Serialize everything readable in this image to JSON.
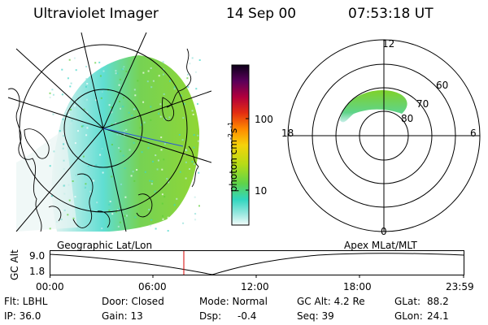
{
  "header": {
    "instrument": "Ultraviolet Imager",
    "date": "14 Sep 00",
    "time": "07:53:18 UT"
  },
  "colorbar": {
    "ticks": [
      "100",
      "10"
    ],
    "unit_label": "photon cm",
    "unit_exp1": "-2",
    "unit_s": "s",
    "unit_exp2": "-1"
  },
  "polar_plot": {
    "mlt_labels": [
      "12",
      "18",
      "6",
      "0"
    ],
    "mlat_labels": [
      "60",
      "70",
      "80"
    ]
  },
  "orbit_panel": {
    "left_label": "Geographic Lat/Lon",
    "right_label": "Apex MLat/MLT",
    "y_axis_label": "GC Alt",
    "y_ticks": [
      "9.0",
      "1.8"
    ],
    "x_ticks": [
      "00:00",
      "06:00",
      "12:00",
      "18:00",
      "23:59"
    ]
  },
  "footer": {
    "flt": "Flt: LBHL",
    "door": "Door: Closed",
    "mode": "Mode: Normal",
    "gc_alt": "GC Alt: 4.2 Re",
    "glat": "GLat:",
    "glat_val": "88.2",
    "ip": "IP: 36.0",
    "gain": "Gain: 13",
    "dsp": "Dsp:",
    "dsp_val": "-0.4",
    "seq": "Seq: 39",
    "glon": "GLon:",
    "glon_val": "24.1"
  },
  "colors": {
    "aurora_green": "#7fd12a",
    "aurora_cyan": "#4fd8cf",
    "cursor_red": "#d40000"
  }
}
